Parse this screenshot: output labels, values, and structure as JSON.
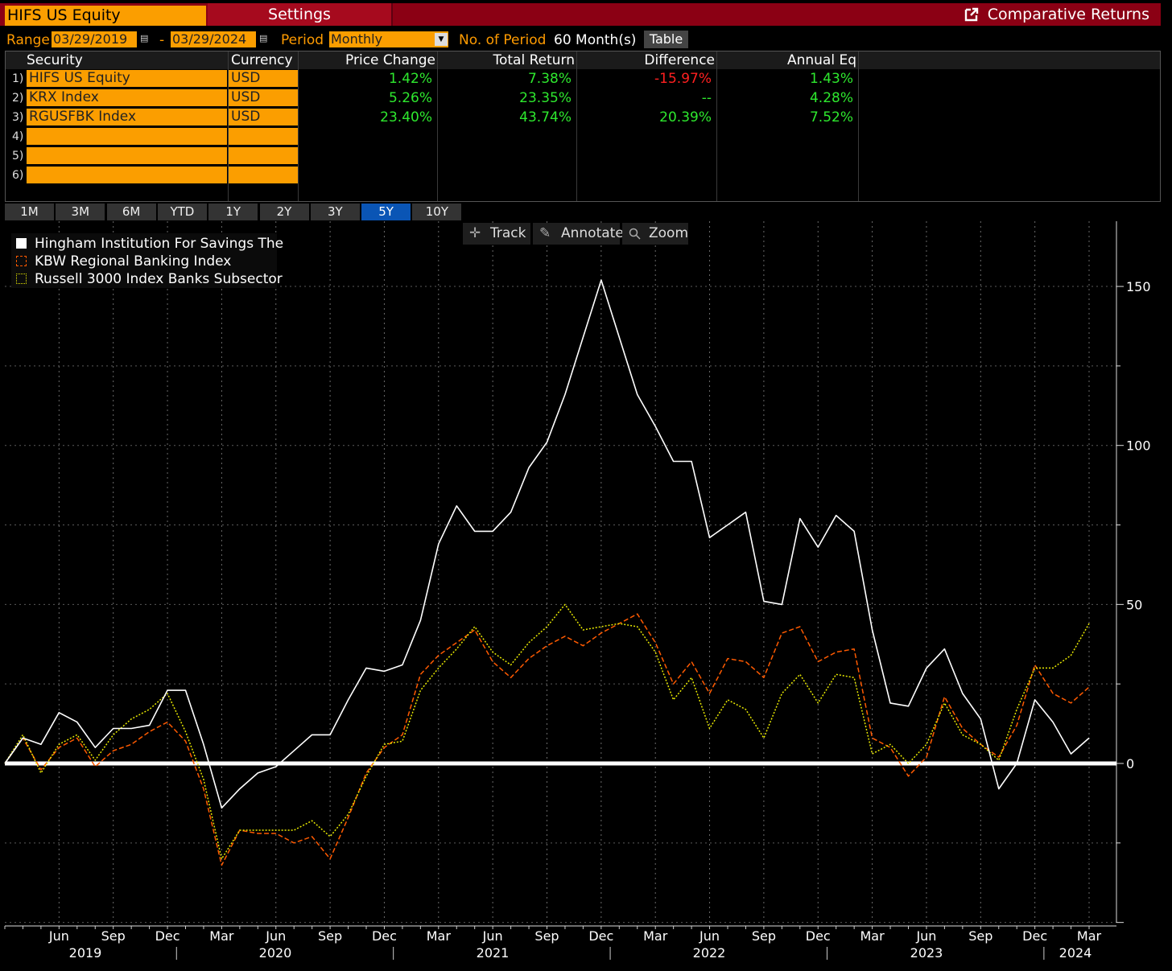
{
  "header": {
    "ticker": "HIFS US Equity",
    "settings_label": "Settings",
    "title": "Comparative Returns"
  },
  "controls": {
    "range_label": "Range",
    "start_date": "03/29/2019",
    "dash": "-",
    "end_date": "03/29/2024",
    "period_label": "Period",
    "period_value": "Monthly",
    "num_period_label": "No. of Period",
    "num_period_value": "60 Month(s)",
    "table_button": "Table"
  },
  "table": {
    "headers": [
      "Security",
      "Currency",
      "Price Change",
      "Total Return",
      "Difference",
      "Annual Eq"
    ],
    "rows": [
      {
        "num": "1)",
        "security": "HIFS US Equity",
        "currency": "USD",
        "price_change": "1.42%",
        "total_return": "7.38%",
        "difference": "-15.97%",
        "annual_eq": "1.43%"
      },
      {
        "num": "2)",
        "security": "KRX Index",
        "currency": "USD",
        "price_change": "5.26%",
        "total_return": "23.35%",
        "difference": "--",
        "annual_eq": "4.28%"
      },
      {
        "num": "3)",
        "security": "RGUSFBK Index",
        "currency": "USD",
        "price_change": "23.40%",
        "total_return": "43.74%",
        "difference": "20.39%",
        "annual_eq": "7.52%"
      },
      {
        "num": "4)",
        "security": "",
        "currency": "",
        "price_change": "",
        "total_return": "",
        "difference": "",
        "annual_eq": ""
      },
      {
        "num": "5)",
        "security": "",
        "currency": "",
        "price_change": "",
        "total_return": "",
        "difference": "",
        "annual_eq": ""
      },
      {
        "num": "6)",
        "security": "",
        "currency": "",
        "price_change": "",
        "total_return": "",
        "difference": "",
        "annual_eq": ""
      }
    ],
    "colors": {
      "positive": "#2ee82e",
      "negative": "#ff2020",
      "neutral": "#2ee82e"
    }
  },
  "periods": {
    "buttons": [
      "1M",
      "3M",
      "6M",
      "YTD",
      "1Y",
      "2Y",
      "3Y",
      "5Y",
      "10Y"
    ],
    "active": "5Y"
  },
  "toolbar": {
    "track": "Track",
    "annotate": "Annotate",
    "zoom": "Zoom"
  },
  "chart_data": {
    "type": "line",
    "y_ticks": [
      0,
      50,
      100,
      150
    ],
    "ylim": [
      -50,
      167
    ],
    "grid": true,
    "legend_position": "top-left",
    "x_month_labels": [
      "Jun",
      "Sep",
      "Dec",
      "Mar",
      "Jun",
      "Sep",
      "Dec",
      "Mar",
      "Jun",
      "Sep",
      "Dec",
      "Mar",
      "Jun",
      "Sep",
      "Dec",
      "Mar",
      "Jun",
      "Sep",
      "Dec",
      "Mar"
    ],
    "x_year_labels": [
      "2019",
      "2020",
      "2021",
      "2022",
      "2023",
      "2024"
    ],
    "x": [
      "2019-03",
      "2019-04",
      "2019-05",
      "2019-06",
      "2019-07",
      "2019-08",
      "2019-09",
      "2019-10",
      "2019-11",
      "2019-12",
      "2020-01",
      "2020-02",
      "2020-03",
      "2020-04",
      "2020-05",
      "2020-06",
      "2020-07",
      "2020-08",
      "2020-09",
      "2020-10",
      "2020-11",
      "2020-12",
      "2021-01",
      "2021-02",
      "2021-03",
      "2021-04",
      "2021-05",
      "2021-06",
      "2021-07",
      "2021-08",
      "2021-09",
      "2021-10",
      "2021-11",
      "2021-12",
      "2022-01",
      "2022-02",
      "2022-03",
      "2022-04",
      "2022-05",
      "2022-06",
      "2022-07",
      "2022-08",
      "2022-09",
      "2022-10",
      "2022-11",
      "2022-12",
      "2023-01",
      "2023-02",
      "2023-03",
      "2023-04",
      "2023-05",
      "2023-06",
      "2023-07",
      "2023-08",
      "2023-09",
      "2023-10",
      "2023-11",
      "2023-12",
      "2024-01",
      "2024-02",
      "2024-03"
    ],
    "series": [
      {
        "name": "Hingham Institution For Savings The",
        "color": "#ffffff",
        "style": "solid",
        "values": [
          0,
          8,
          6,
          16,
          13,
          5,
          11,
          11,
          12,
          23,
          23,
          6,
          -14,
          -8,
          -3,
          -1,
          4,
          9,
          9,
          20,
          30,
          29,
          31,
          45,
          69,
          81,
          73,
          73,
          79,
          93,
          101,
          116,
          134,
          152,
          134,
          116,
          106,
          95,
          95,
          71,
          75,
          79,
          51,
          50,
          77,
          68,
          78,
          73,
          42,
          19,
          18,
          30,
          36,
          22,
          14,
          -8,
          0,
          20,
          13,
          3,
          8
        ]
      },
      {
        "name": "KBW Regional Banking Index",
        "color": "#ff5a00",
        "style": "dashed",
        "values": [
          0,
          8,
          -2,
          5,
          8,
          -1,
          4,
          6,
          10,
          13,
          7,
          -8,
          -32,
          -21,
          -22,
          -22,
          -25,
          -23,
          -30,
          -17,
          -3,
          5,
          9,
          28,
          34,
          38,
          42,
          32,
          27,
          33,
          37,
          40,
          37,
          41,
          44,
          47,
          38,
          25,
          32,
          22,
          33,
          32,
          27,
          41,
          43,
          32,
          35,
          36,
          8,
          5,
          -4,
          2,
          21,
          11,
          6,
          2,
          12,
          31,
          22,
          19,
          24
        ]
      },
      {
        "name": "Russell 3000 Index Banks Subsector",
        "color": "#e8e800",
        "style": "dotted",
        "values": [
          0,
          9,
          -3,
          6,
          9,
          1,
          9,
          14,
          17,
          22,
          10,
          -5,
          -30,
          -21,
          -21,
          -21,
          -21,
          -18,
          -23,
          -16,
          -4,
          6,
          7,
          23,
          30,
          36,
          43,
          35,
          31,
          38,
          43,
          50,
          42,
          43,
          44,
          43,
          35,
          20,
          27,
          11,
          20,
          17,
          8,
          22,
          28,
          19,
          28,
          27,
          3,
          6,
          0,
          6,
          19,
          9,
          6,
          1,
          17,
          30,
          30,
          34,
          44
        ]
      }
    ]
  }
}
